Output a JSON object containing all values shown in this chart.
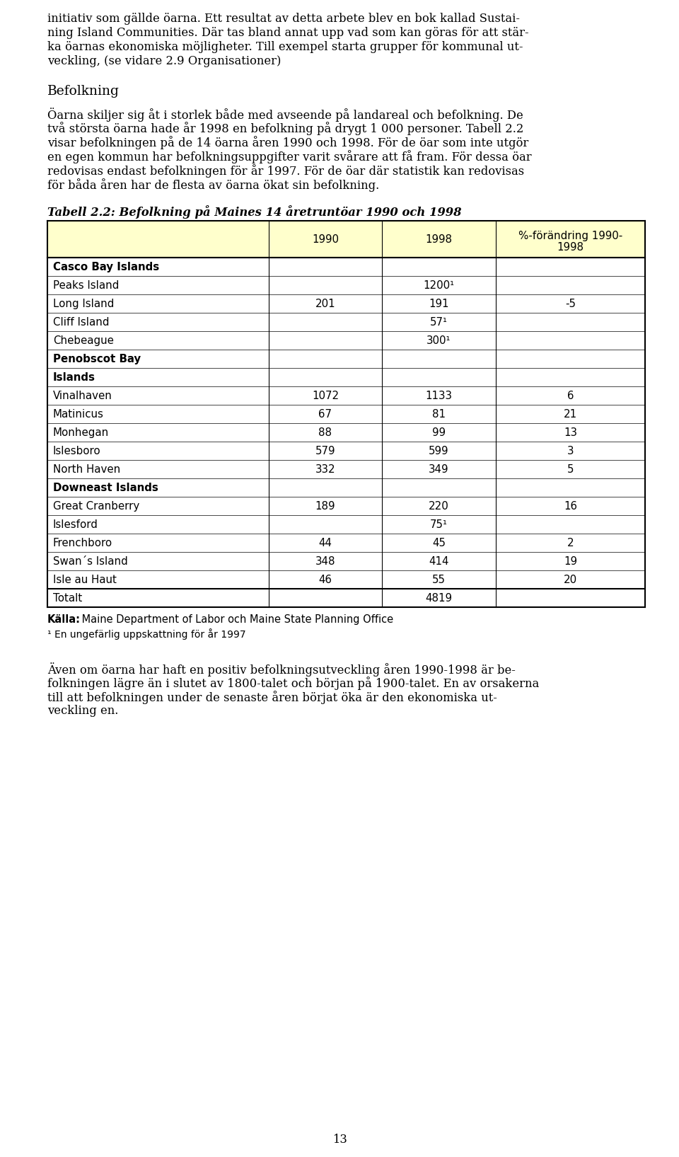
{
  "page_background": "#ffffff",
  "top_text": [
    "initiativ som gällde öarna. Ett resultat av detta arbete blev en bok kallad Sustai-",
    "ning Island Communities. Där tas bland annat upp vad som kan göras för att stär-",
    "ka öarnas ekonomiska möjligheter. Till exempel starta grupper för kommunal ut-",
    "veckling, (se vidare 2.9 Organisationer)"
  ],
  "section_heading": "Befolkning",
  "body_text": [
    "Öarna skiljer sig åt i storlek både med avseende på landareal och befolkning. De",
    "två största öarna hade år 1998 en befolkning på drygt 1 000 personer. Tabell 2.2",
    "visar befolkningen på de 14 öarna åren 1990 och 1998. För de öar som inte utgör",
    "en egen kommun har befolkningsuppgifter varit svårare att få fram. För dessa öar",
    "redovisas endast befolkningen för år 1997. För de öar där statistik kan redovisas",
    "för båda åren har de flesta av öarna ökat sin befolkning."
  ],
  "table_caption": "Tabell 2.2: Befolkning på Maines 14 åretruntöar 1990 och 1998",
  "header_bg": "#ffffcc",
  "table_rows": [
    {
      "label": "Casco Bay Islands",
      "bold": true,
      "val1990": "",
      "val1998": "",
      "valchange": "",
      "thick_top": true
    },
    {
      "label": "Peaks Island",
      "bold": false,
      "val1990": "",
      "val1998": "1200¹",
      "valchange": "",
      "thick_top": false
    },
    {
      "label": "Long Island",
      "bold": false,
      "val1990": "201",
      "val1998": "191",
      "valchange": "-5",
      "thick_top": false
    },
    {
      "label": "Cliff Island",
      "bold": false,
      "val1990": "",
      "val1998": "57¹",
      "valchange": "",
      "thick_top": false
    },
    {
      "label": "Chebeague",
      "bold": false,
      "val1990": "",
      "val1998": "300¹",
      "valchange": "",
      "thick_top": false
    },
    {
      "label": "Penobscot Bay",
      "bold": true,
      "val1990": "",
      "val1998": "",
      "valchange": "",
      "thick_top": false
    },
    {
      "label": "Islands",
      "bold": true,
      "val1990": "",
      "val1998": "",
      "valchange": "",
      "thick_top": false
    },
    {
      "label": "Vinalhaven",
      "bold": false,
      "val1990": "1072",
      "val1998": "1133",
      "valchange": "6",
      "thick_top": false
    },
    {
      "label": "Matinicus",
      "bold": false,
      "val1990": "67",
      "val1998": "81",
      "valchange": "21",
      "thick_top": false
    },
    {
      "label": "Monhegan",
      "bold": false,
      "val1990": "88",
      "val1998": "99",
      "valchange": "13",
      "thick_top": false
    },
    {
      "label": "Islesboro",
      "bold": false,
      "val1990": "579",
      "val1998": "599",
      "valchange": "3",
      "thick_top": false
    },
    {
      "label": "North Haven",
      "bold": false,
      "val1990": "332",
      "val1998": "349",
      "valchange": "5",
      "thick_top": false
    },
    {
      "label": "Downeast Islands",
      "bold": true,
      "val1990": "",
      "val1998": "",
      "valchange": "",
      "thick_top": false
    },
    {
      "label": "Great Cranberry",
      "bold": false,
      "val1990": "189",
      "val1998": "220",
      "valchange": "16",
      "thick_top": false
    },
    {
      "label": "Islesford",
      "bold": false,
      "val1990": "",
      "val1998": "75¹",
      "valchange": "",
      "thick_top": false
    },
    {
      "label": "Frenchboro",
      "bold": false,
      "val1990": "44",
      "val1998": "45",
      "valchange": "2",
      "thick_top": false
    },
    {
      "label": "Swan´s Island",
      "bold": false,
      "val1990": "348",
      "val1998": "414",
      "valchange": "19",
      "thick_top": false
    },
    {
      "label": "Isle au Haut",
      "bold": false,
      "val1990": "46",
      "val1998": "55",
      "valchange": "20",
      "thick_top": false
    },
    {
      "label": "Totalt",
      "bold": false,
      "val1990": "",
      "val1998": "4819",
      "valchange": "",
      "thick_top": true
    }
  ],
  "source_bold": "Källa:",
  "source_rest": " Maine Department of Labor och Maine State Planning Office",
  "footnote": "¹ En ungefärlig uppskattning för år 1997",
  "bottom_lines": [
    "Även om öarna har haft en positiv befolkningsutveckling åren 1990-1998 är be-",
    "folkningen lägre än i slutet av 1800-talet och början på 1900-talet. En av orsakerna",
    "till att befolkningen under de senaste åren börjat öka är den ekonomiska ut-",
    "veckling en."
  ],
  "page_number": "13"
}
